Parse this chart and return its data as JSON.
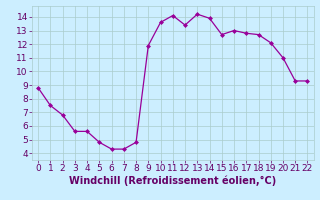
{
  "hours": [
    0,
    1,
    2,
    3,
    4,
    5,
    6,
    7,
    8,
    9,
    10,
    11,
    12,
    13,
    14,
    15,
    16,
    17,
    18,
    19,
    20,
    21,
    22
  ],
  "values": [
    8.8,
    7.5,
    6.8,
    5.6,
    5.6,
    4.8,
    4.3,
    4.3,
    4.8,
    11.9,
    13.6,
    14.1,
    13.4,
    14.2,
    13.9,
    12.7,
    13.0,
    12.8,
    12.7,
    12.1,
    11.0,
    9.3,
    9.3
  ],
  "line_color": "#990099",
  "marker": "D",
  "marker_size": 2,
  "bg_color": "#cceeff",
  "grid_color": "#aacccc",
  "xlabel": "Windchill (Refroidissement éolien,°C)",
  "xlim": [
    -0.5,
    22.5
  ],
  "ylim": [
    3.5,
    14.8
  ],
  "yticks": [
    4,
    5,
    6,
    7,
    8,
    9,
    10,
    11,
    12,
    13,
    14
  ],
  "xticks": [
    0,
    1,
    2,
    3,
    4,
    5,
    6,
    7,
    8,
    9,
    10,
    11,
    12,
    13,
    14,
    15,
    16,
    17,
    18,
    19,
    20,
    21,
    22
  ],
  "xlabel_fontsize": 7,
  "tick_fontsize": 6.5,
  "label_color": "#660066",
  "axis_label_color": "#660066"
}
